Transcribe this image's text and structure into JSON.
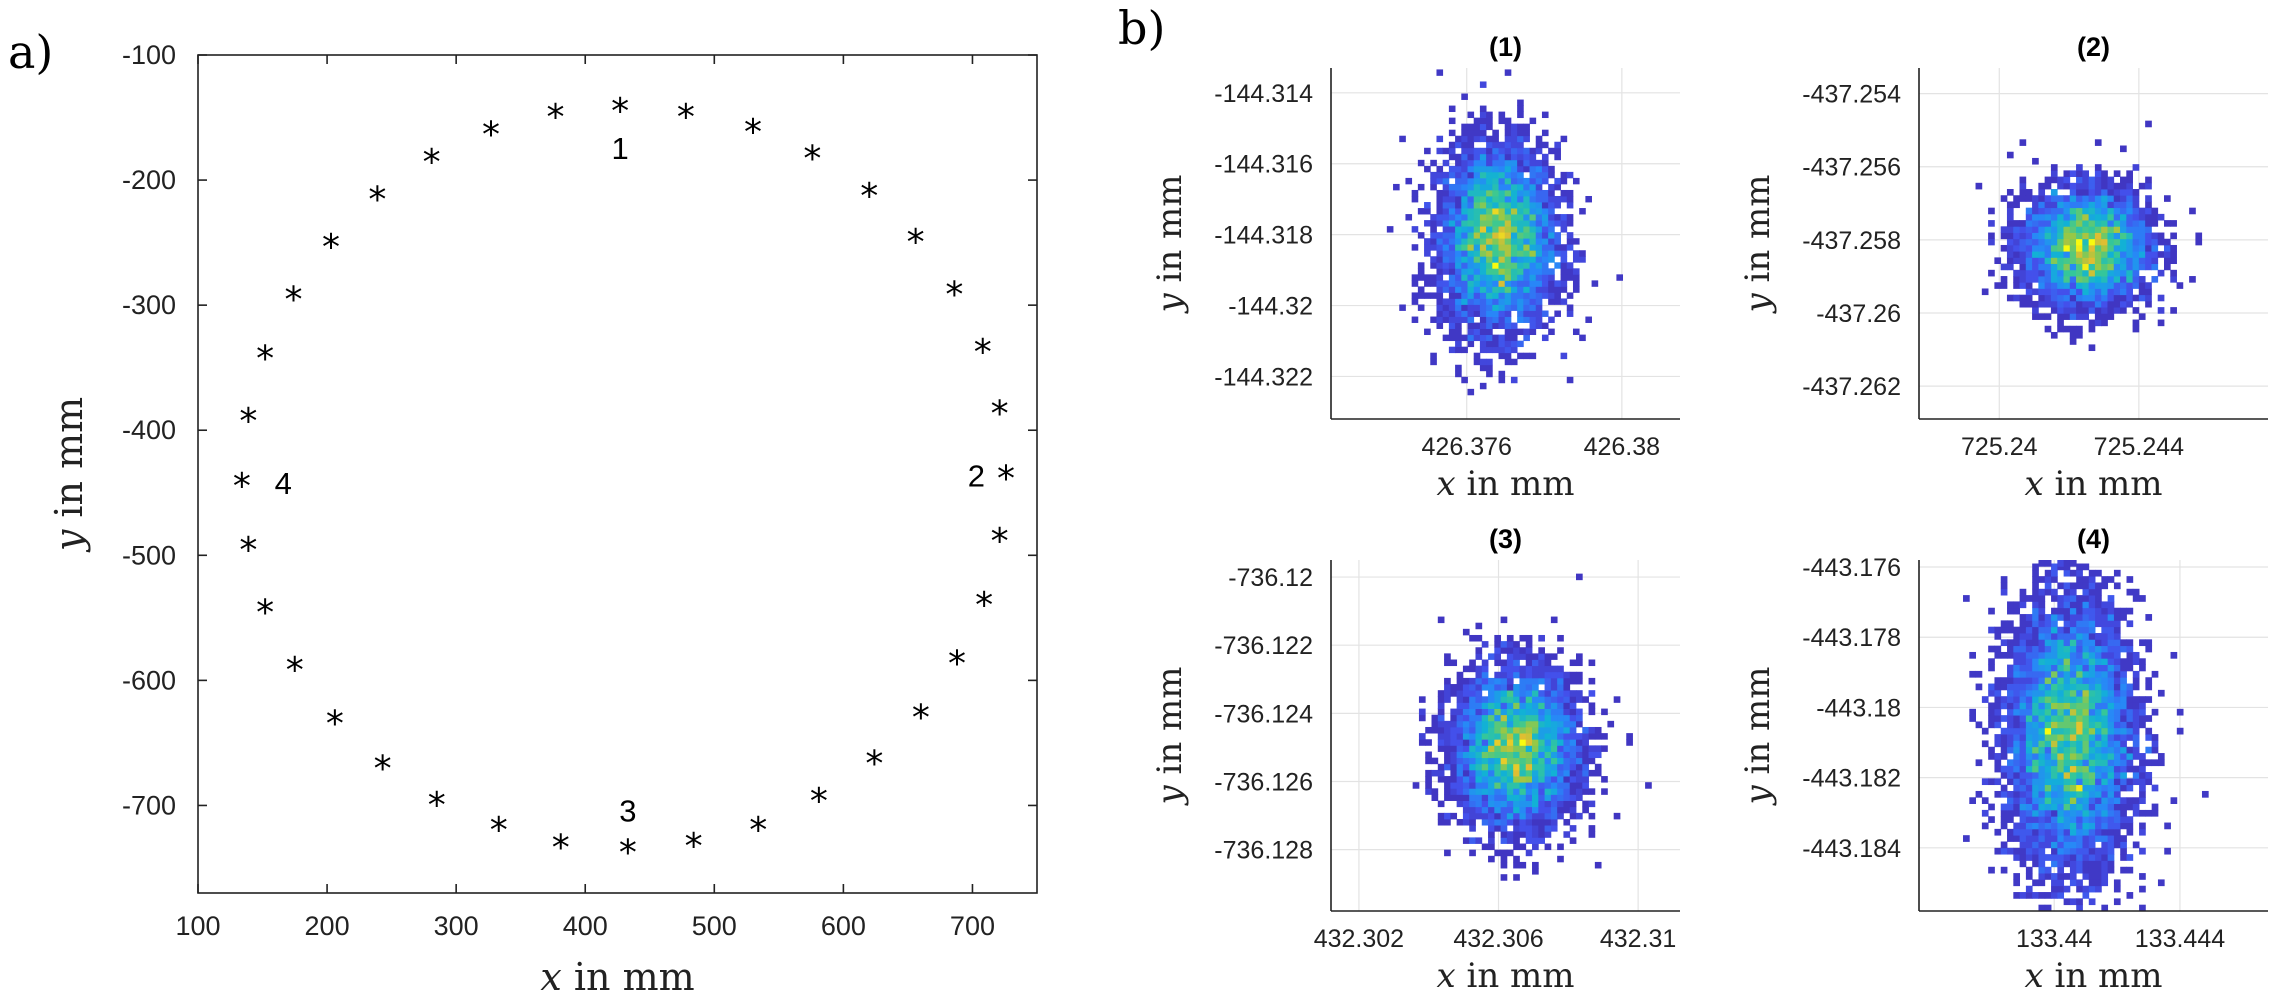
{
  "chart_data": [
    {
      "panel": "a)",
      "type": "scatter",
      "marker": "*",
      "title": "",
      "xlabel_var": "x",
      "xlabel_unit": "in mm",
      "ylabel_var": "y",
      "ylabel_unit": "in mm",
      "xlim": [
        100,
        750
      ],
      "ylim": [
        -770,
        -100
      ],
      "xticks": [
        100,
        200,
        300,
        400,
        500,
        600,
        700
      ],
      "yticks": [
        -100,
        -200,
        -300,
        -400,
        -500,
        -600,
        -700
      ],
      "grid": false,
      "points": [
        [
          427,
          -143
        ],
        [
          478,
          -148
        ],
        [
          530,
          -160
        ],
        [
          576,
          -181
        ],
        [
          620,
          -211
        ],
        [
          656,
          -248
        ],
        [
          686,
          -290
        ],
        [
          708,
          -336
        ],
        [
          721,
          -385
        ],
        [
          726,
          -437
        ],
        [
          721,
          -487
        ],
        [
          709,
          -538
        ],
        [
          688,
          -585
        ],
        [
          660,
          -628
        ],
        [
          624,
          -665
        ],
        [
          581,
          -695
        ],
        [
          534,
          -718
        ],
        [
          484,
          -731
        ],
        [
          433,
          -736
        ],
        [
          381,
          -732
        ],
        [
          333,
          -718
        ],
        [
          285,
          -698
        ],
        [
          243,
          -669
        ],
        [
          206,
          -633
        ],
        [
          175,
          -590
        ],
        [
          152,
          -544
        ],
        [
          139,
          -494
        ],
        [
          134,
          -443
        ],
        [
          139,
          -391
        ],
        [
          152,
          -341
        ],
        [
          174,
          -294
        ],
        [
          203,
          -252
        ],
        [
          239,
          -214
        ],
        [
          281,
          -184
        ],
        [
          327,
          -162
        ],
        [
          377,
          -148
        ]
      ],
      "annotations": [
        {
          "text": "1",
          "x": 427,
          "y": -175
        },
        {
          "text": "2",
          "x": 703,
          "y": -437
        },
        {
          "text": "3",
          "x": 433,
          "y": -705
        },
        {
          "text": "4",
          "x": 166,
          "y": -443
        }
      ]
    },
    {
      "panel": "b)",
      "type": "heatmap",
      "subplots": [
        {
          "title": "(1)",
          "xlabel_var": "x",
          "xlabel_unit": "in mm",
          "ylabel_var": "y",
          "ylabel_unit": "in mm",
          "xlim": [
            426.3725,
            426.3815
          ],
          "ylim": [
            -144.3232,
            -144.3133
          ],
          "xticks": [
            426.376,
            426.38
          ],
          "xtick_labels": [
            "426.376",
            "426.38"
          ],
          "yticks": [
            -144.314,
            -144.316,
            -144.318,
            -144.32,
            -144.322
          ],
          "ytick_labels": [
            "-144.314",
            "-144.316",
            "-144.318",
            "-144.32",
            "-144.322"
          ],
          "center": [
            426.3768,
            -144.3181
          ],
          "sigma": [
            0.00075,
            0.0013
          ],
          "counts": 4200,
          "bin_x": 0.00016,
          "bin_y": 0.00017
        },
        {
          "title": "(2)",
          "xlabel_var": "x",
          "xlabel_unit": "in mm",
          "ylabel_var": "y",
          "ylabel_unit": "in mm",
          "xlim": [
            725.2377,
            725.2477
          ],
          "ylim": [
            -437.2629,
            -437.2533
          ],
          "xticks": [
            725.24,
            725.244
          ],
          "xtick_labels": [
            "725.24",
            "725.244"
          ],
          "yticks": [
            -437.254,
            -437.256,
            -437.258,
            -437.26,
            -437.262
          ],
          "ytick_labels": [
            "-437.254",
            "-437.256",
            "-437.258",
            "-437.26",
            "-437.262"
          ],
          "center": [
            725.2425,
            -437.2582
          ],
          "sigma": [
            0.0009,
            0.0008
          ],
          "counts": 3400,
          "bin_x": 0.00018,
          "bin_y": 0.00017
        },
        {
          "title": "(3)",
          "xlabel_var": "x",
          "xlabel_unit": "in mm",
          "ylabel_var": "y",
          "ylabel_unit": "in mm",
          "xlim": [
            432.3012,
            432.3112
          ],
          "ylim": [
            -736.1298,
            -736.1195
          ],
          "xticks": [
            432.302,
            432.306,
            432.31
          ],
          "xtick_labels": [
            "432.302",
            "432.306",
            "432.31"
          ],
          "yticks": [
            -736.12,
            -736.122,
            -736.124,
            -736.126,
            -736.128
          ],
          "ytick_labels": [
            "-736.12",
            "-736.122",
            "-736.124",
            "-736.126",
            "-736.128"
          ],
          "center": [
            432.3065,
            -736.125
          ],
          "sigma": [
            0.0009,
            0.00115
          ],
          "counts": 4200,
          "bin_x": 0.00018,
          "bin_y": 0.00018
        },
        {
          "title": "(4)",
          "xlabel_var": "x",
          "xlabel_unit": "in mm",
          "ylabel_var": "y",
          "ylabel_unit": "in mm",
          "xlim": [
            133.4357,
            133.4468
          ],
          "ylim": [
            -443.1858,
            -443.1758
          ],
          "xticks": [
            133.44,
            133.444
          ],
          "xtick_labels": [
            "133.44",
            "133.444"
          ],
          "yticks": [
            -443.176,
            -443.178,
            -443.18,
            -443.182,
            -443.184
          ],
          "ytick_labels": [
            "-443.176",
            "-443.178",
            "-443.18",
            "-443.182",
            "-443.184"
          ],
          "center": [
            133.4405,
            -443.1808
          ],
          "sigma": [
            0.001,
            0.0019
          ],
          "counts": 5200,
          "bin_x": 0.0002,
          "bin_y": 0.00018
        }
      ]
    }
  ]
}
